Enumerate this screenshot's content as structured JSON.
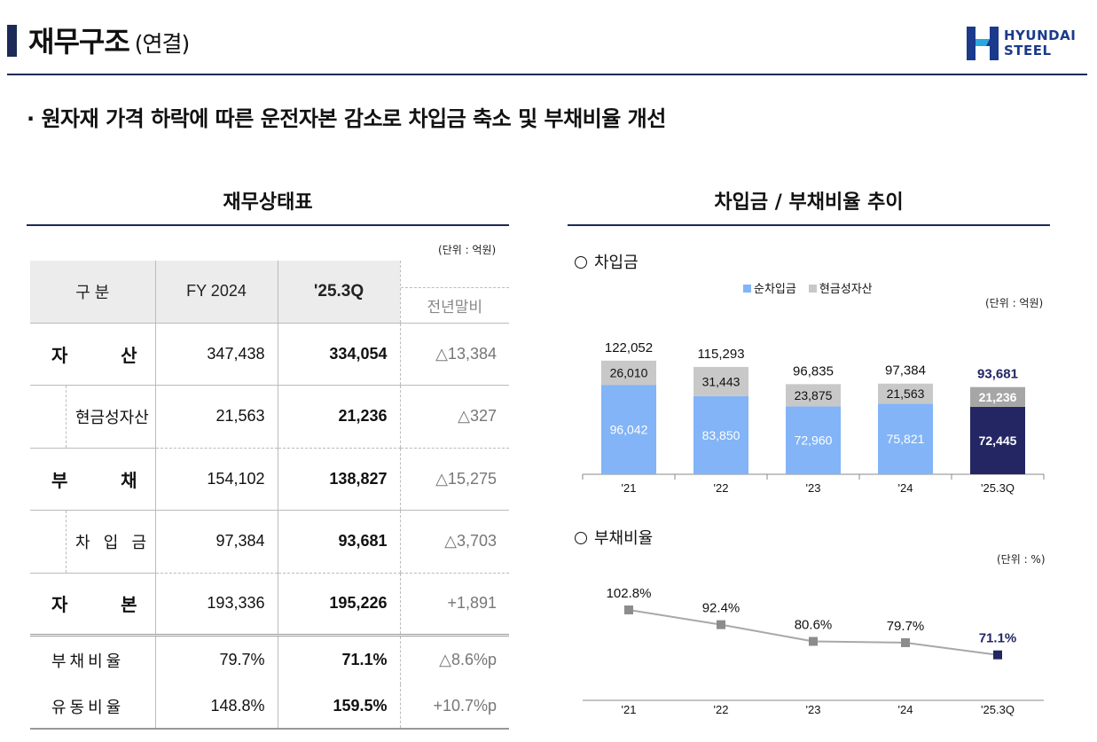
{
  "header": {
    "title": "재무구조",
    "title_sub": "(연결)",
    "logo_line1": "HYUNDAI",
    "logo_line2": "STEEL"
  },
  "headline": "· 원자재 가격 하락에 따른 운전자본 감소로 차입금 축소 및 부채비율 개선",
  "balance_sheet": {
    "title": "재무상태표",
    "unit": "(단위 : 억원)",
    "columns": {
      "category": "구  분",
      "fy2024": "FY 2024",
      "q": "'25.3Q",
      "yoy": "전년말비"
    },
    "rows": [
      {
        "label_a": "자",
        "label_b": "산",
        "fy": "347,438",
        "q": "334,054",
        "yoy": "△13,384"
      },
      {
        "label": "현금성자산",
        "fy": "21,563",
        "q": "21,236",
        "yoy": "△327"
      },
      {
        "label_a": "부",
        "label_b": "채",
        "fy": "154,102",
        "q": "138,827",
        "yoy": "△15,275"
      },
      {
        "label_a": "차",
        "label_m": "입",
        "label_b": "금",
        "fy": "97,384",
        "q": "93,681",
        "yoy": "△3,703"
      },
      {
        "label_a": "자",
        "label_b": "본",
        "fy": "193,336",
        "q": "195,226",
        "yoy": "+1,891"
      },
      {
        "label": "부채비율",
        "fy": "79.7%",
        "q": "71.1%",
        "yoy": "△8.6%p"
      },
      {
        "label": "유동비율",
        "fy": "148.8%",
        "q": "159.5%",
        "yoy": "+10.7%p"
      }
    ]
  },
  "trend": {
    "title": "차입금 / 부채비율 추이",
    "borrowing_label": "차입금",
    "borrowing_unit": "(단위 : 억원)",
    "ratio_label": "부채비율",
    "ratio_unit": "(단위 : %)"
  },
  "chart_data": [
    {
      "type": "bar",
      "stacked": true,
      "title": "차입금",
      "categories": [
        "'21",
        "'22",
        "'23",
        "'24",
        "'25.3Q"
      ],
      "totals": [
        "122,052",
        "115,293",
        "96,835",
        "97,384",
        "93,681"
      ],
      "series": [
        {
          "name": "순차입금",
          "color": "#82b4f7",
          "highlight_color": "#232663",
          "values": [
            96042,
            83850,
            72960,
            75821,
            72445
          ],
          "labels": [
            "96,042",
            "83,850",
            "72,960",
            "75,821",
            "72,445"
          ]
        },
        {
          "name": "현금성자산",
          "color": "#c8c8c8",
          "highlight_color": "#a6a6a6",
          "values": [
            26010,
            31443,
            23875,
            21563,
            21236
          ],
          "labels": [
            "26,010",
            "31,443",
            "23,875",
            "21,563",
            "21,236"
          ]
        }
      ],
      "legend": "top"
    },
    {
      "type": "line",
      "title": "부채비율",
      "categories": [
        "'21",
        "'22",
        "'23",
        "'24",
        "'25.3Q"
      ],
      "values": [
        102.8,
        92.4,
        80.6,
        79.7,
        71.1
      ],
      "labels": [
        "102.8%",
        "92.4%",
        "80.6%",
        "79.7%",
        "71.1%"
      ],
      "color": "#a8a8a8",
      "highlight_color": "#232663"
    }
  ]
}
